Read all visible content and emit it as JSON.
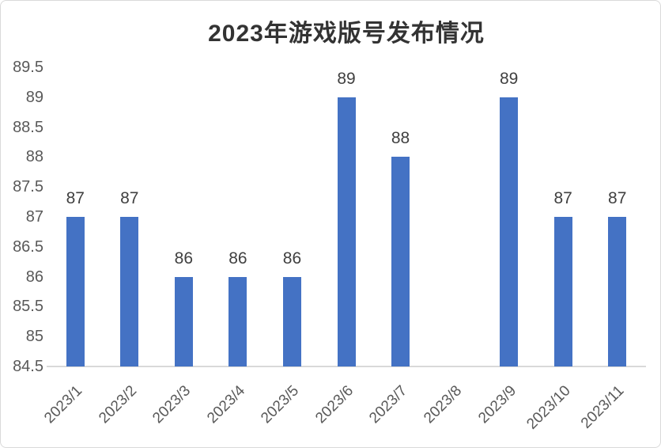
{
  "chart_data": {
    "type": "bar",
    "title": "2023年游戏版号发布情况",
    "categories": [
      "2023/1",
      "2023/2",
      "2023/3",
      "2023/4",
      "2023/5",
      "2023/6",
      "2023/7",
      "2023/8",
      "2023/9",
      "2023/10",
      "2023/11"
    ],
    "values": [
      87,
      87,
      86,
      86,
      86,
      89,
      88,
      null,
      89,
      87,
      87
    ],
    "data_labels": [
      "87",
      "87",
      "86",
      "86",
      "86",
      "89",
      "88",
      "",
      "89",
      "87",
      "87"
    ],
    "ylim": [
      84.5,
      89.5
    ],
    "ytick_step": 0.5,
    "ytick_labels": [
      "89.5",
      "89",
      "88.5",
      "88",
      "87.5",
      "87",
      "86.5",
      "86",
      "85.5",
      "85",
      "84.5"
    ],
    "xlabel": "",
    "ylabel": "",
    "grid": false,
    "legend": "none",
    "x_label_rotation_deg": -45,
    "colors": {
      "bar": "#4472c4",
      "axis_line": "#d9d9d9",
      "tick_text": "#595959",
      "value_text": "#404040",
      "title_text": "#333333"
    }
  }
}
